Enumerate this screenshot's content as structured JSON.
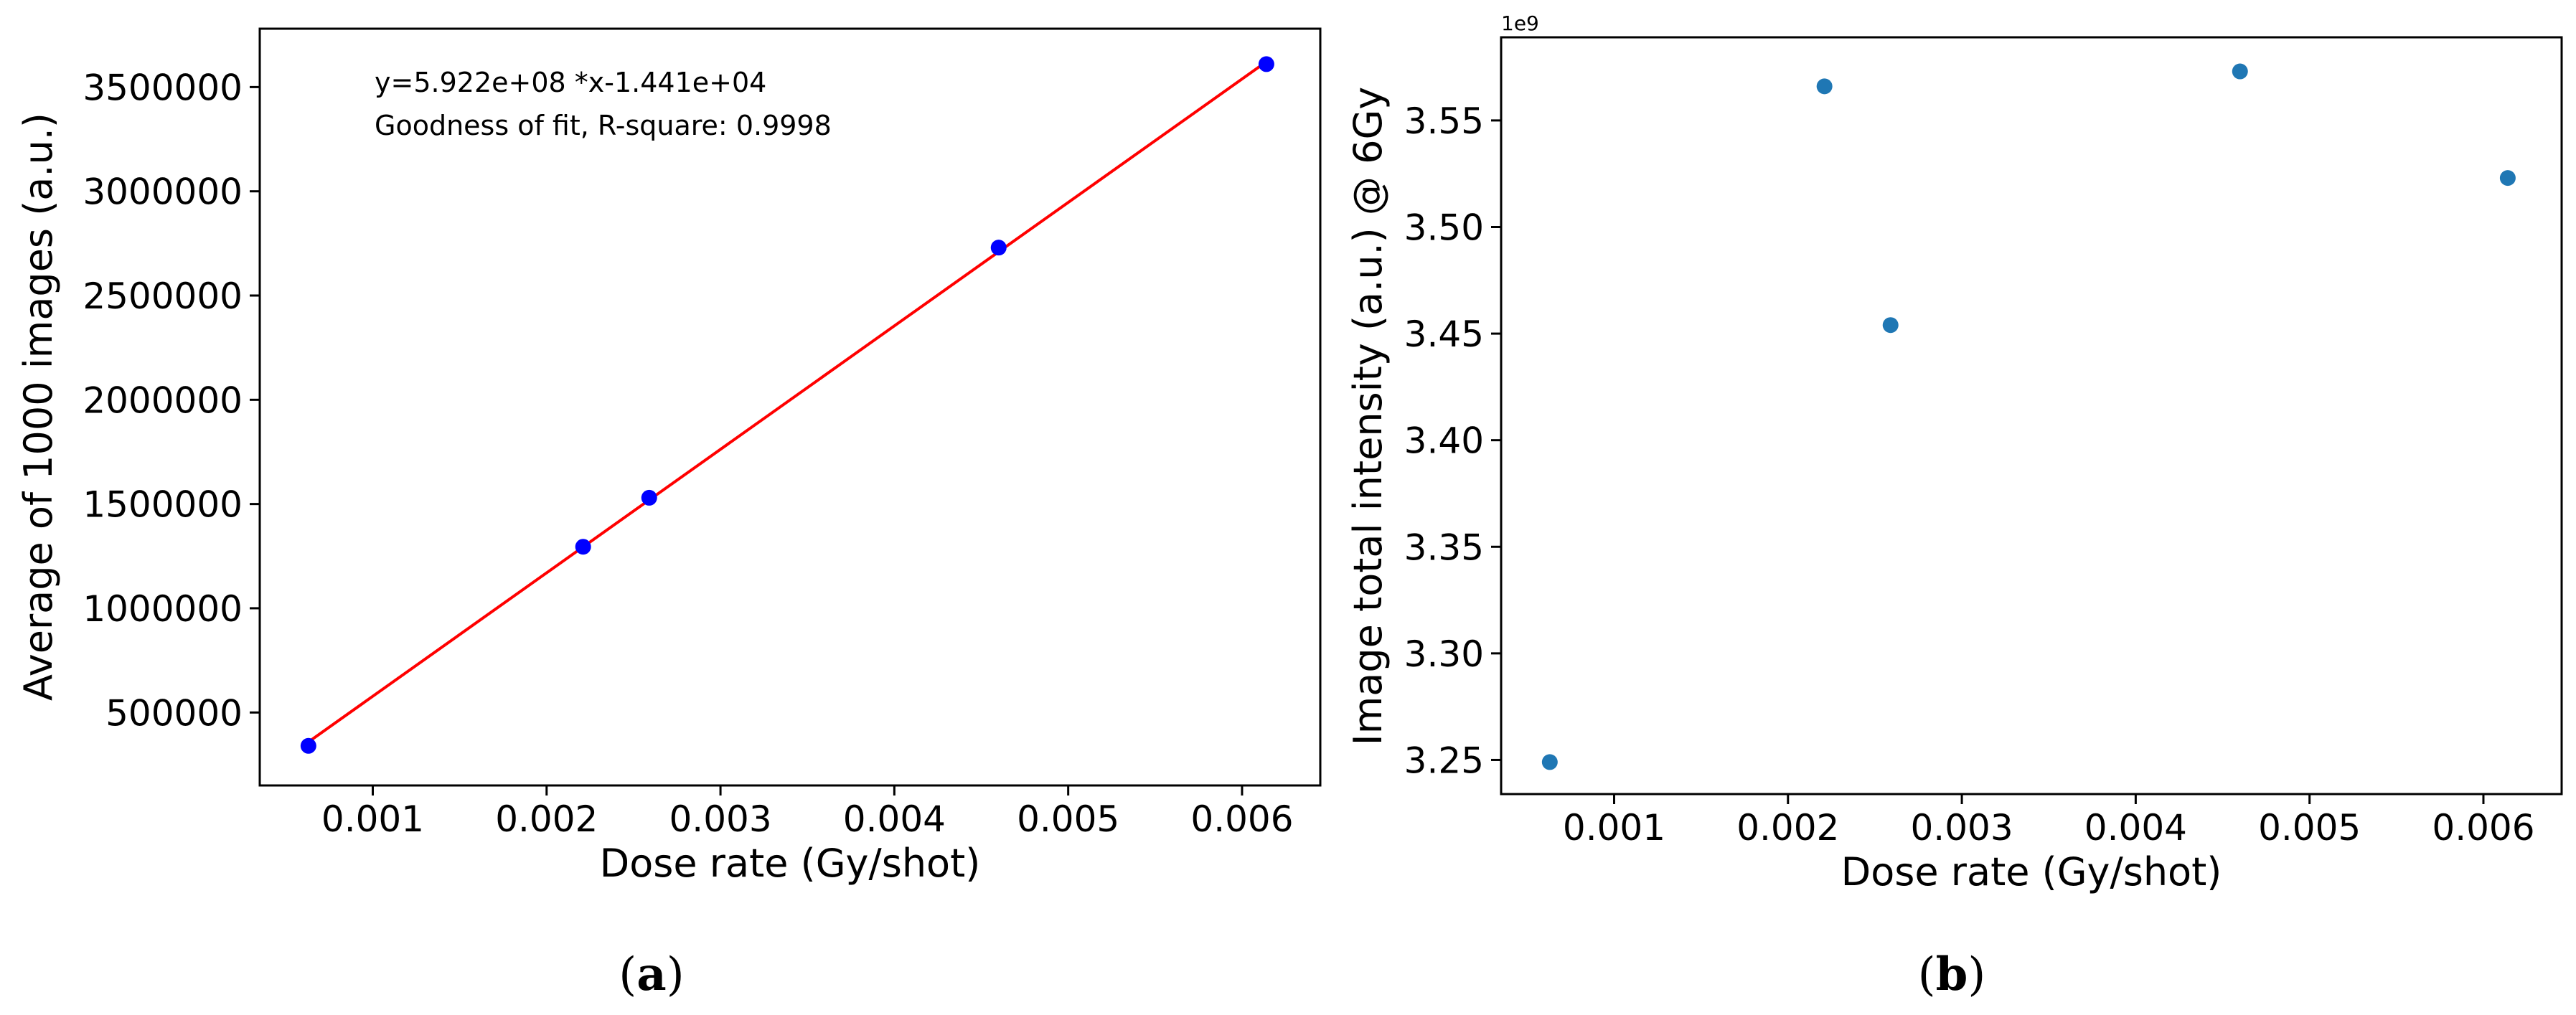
{
  "chart_data": [
    {
      "panel": "a",
      "type": "scatter",
      "caption": {
        "open": "(",
        "letter": "a",
        "close": ")"
      },
      "xlabel": "Dose rate (Gy/shot)",
      "ylabel": "Average of 1000 images (a.u.)",
      "xlim": [
        0.00035,
        0.00645
      ],
      "ylim": [
        150000,
        3780000
      ],
      "xticks": [
        0.001,
        0.002,
        0.003,
        0.004,
        0.005,
        0.006
      ],
      "xtick_labels": [
        "0.001",
        "0.002",
        "0.003",
        "0.004",
        "0.005",
        "0.006"
      ],
      "yticks": [
        500000,
        1000000,
        1500000,
        2000000,
        2500000,
        3000000,
        3500000
      ],
      "ytick_labels": [
        "500000",
        "1000000",
        "1500000",
        "2000000",
        "2500000",
        "3000000",
        "3500000"
      ],
      "series": [
        {
          "x": [
            0.00063,
            0.00221,
            0.00259,
            0.0046,
            0.00614
          ],
          "y": [
            340000,
            1295000,
            1530000,
            2730000,
            3610000
          ],
          "color": "#0000ff"
        }
      ],
      "fit_line": {
        "x": [
          0.00063,
          0.00614
        ],
        "y": [
          358700,
          3621700
        ],
        "color": "#ff0000"
      },
      "annotations": [
        "y=5.922e+08 *x-1.441e+04",
        "Goodness of fit, R-square: 0.9998"
      ],
      "grid": false
    },
    {
      "panel": "b",
      "type": "scatter",
      "caption": {
        "open": "(",
        "letter": "b",
        "close": ")"
      },
      "xlabel": "Dose rate (Gy/shot)",
      "ylabel": "Image total intensity (a.u.) @ 6Gy",
      "offset_text": "1e9",
      "xlim": [
        0.00035,
        0.00645
      ],
      "ylim": [
        3.234,
        3.589
      ],
      "xticks": [
        0.001,
        0.002,
        0.003,
        0.004,
        0.005,
        0.006
      ],
      "xtick_labels": [
        "0.001",
        "0.002",
        "0.003",
        "0.004",
        "0.005",
        "0.006"
      ],
      "yticks": [
        3.25,
        3.3,
        3.35,
        3.4,
        3.45,
        3.5,
        3.55
      ],
      "ytick_labels": [
        "3.25",
        "3.30",
        "3.35",
        "3.40",
        "3.45",
        "3.50",
        "3.55"
      ],
      "series": [
        {
          "x": [
            0.00063,
            0.00221,
            0.00259,
            0.0046,
            0.00614
          ],
          "y": [
            3.249,
            3.566,
            3.454,
            3.573,
            3.523
          ],
          "color": "#1f77b4"
        }
      ],
      "grid": false
    }
  ]
}
